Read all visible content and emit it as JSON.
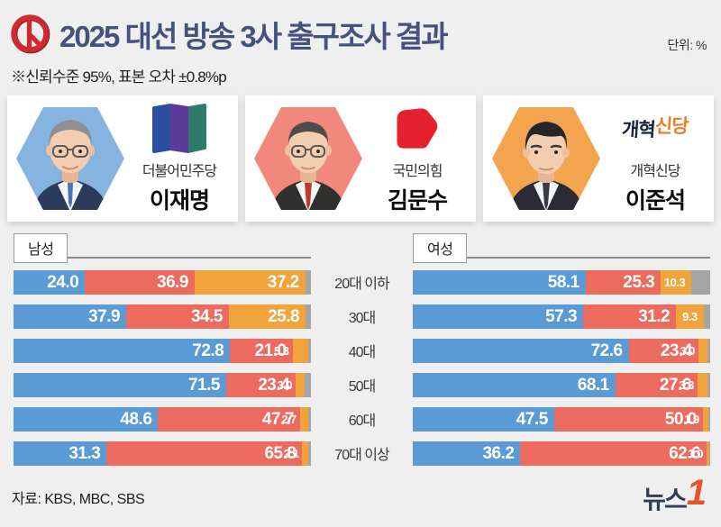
{
  "header": {
    "title": "2025 대선 방송 3사 출구조사 결과",
    "unit_label": "단위: %",
    "note": "※신뢰수준 95%, 표본 오차 ±0.8%p"
  },
  "candidates": [
    {
      "party": "더불어민주당",
      "name": "이재명",
      "photo_bg": "#85b4e0",
      "bar_color": "#5b9bd5"
    },
    {
      "party": "국민의힘",
      "name": "김문수",
      "photo_bg": "#f0897b",
      "bar_color": "#ec6a5e"
    },
    {
      "party": "개혁신당",
      "name": "이준석",
      "photo_bg": "#f2a44e",
      "bar_color": "#f2a43c",
      "logo_text_1": "개혁",
      "logo_text_2": "신당"
    }
  ],
  "chart_data": {
    "type": "bar",
    "stacked": true,
    "unit": "%",
    "categories": [
      "20대 이하",
      "30대",
      "40대",
      "50대",
      "60대",
      "70대 이상"
    ],
    "series_names": [
      "이재명",
      "김문수",
      "이준석"
    ],
    "series_colors": [
      "#5b9bd5",
      "#ec6a5e",
      "#f2a43c"
    ],
    "remainder_color": "#a5a5a5",
    "xlim": [
      0,
      100
    ],
    "panels": [
      {
        "label": "남성",
        "rows": [
          [
            24.0,
            36.9,
            37.2
          ],
          [
            37.9,
            34.5,
            25.8
          ],
          [
            72.8,
            21.0,
            5.3
          ],
          [
            71.5,
            23.4,
            3.0
          ],
          [
            48.6,
            47.7,
            2.7
          ],
          [
            31.3,
            65.8,
            2.1
          ]
        ]
      },
      {
        "label": "여성",
        "rows": [
          [
            58.1,
            25.3,
            10.3
          ],
          [
            57.3,
            31.2,
            9.3
          ],
          [
            72.6,
            23.4,
            3.0
          ],
          [
            68.1,
            27.6,
            3.3
          ],
          [
            47.5,
            50.0,
            1.9
          ],
          [
            36.2,
            62.6,
            1.0
          ]
        ]
      }
    ]
  },
  "footer": {
    "source": "자료: KBS, MBC, SBS",
    "logo_text": "뉴스",
    "logo_number": "1"
  }
}
